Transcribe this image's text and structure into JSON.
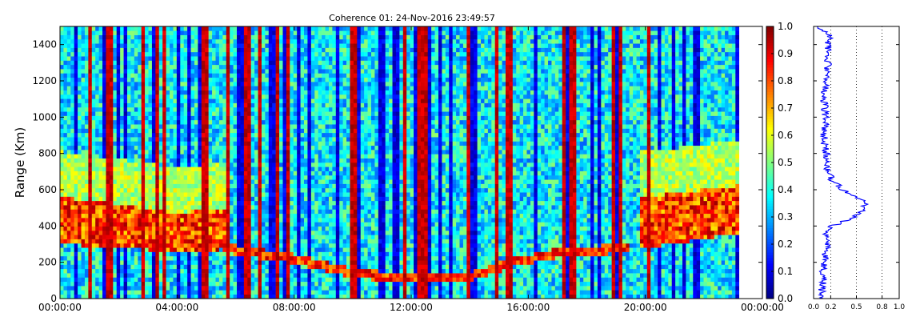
{
  "chart_data": [
    {
      "type": "heatmap",
      "title": "Coherence 01: 24-Nov-2016 23:49:57",
      "xlabel": "",
      "ylabel": "Range (Km)",
      "x_ticks": [
        "00:00:00",
        "04:00:00",
        "08:00:00",
        "12:00:00",
        "16:00:00",
        "20:00:00",
        "00:00:00"
      ],
      "x_range_hours": [
        0,
        24
      ],
      "y_ticks": [
        0,
        200,
        400,
        600,
        800,
        1000,
        1200,
        1400
      ],
      "ylim": [
        0,
        1500
      ],
      "colormap": "jet",
      "colorbar": {
        "range": [
          0.0,
          1.0
        ],
        "ticks": [
          "0.0",
          "0.1",
          "0.2",
          "0.3",
          "0.4",
          "0.5",
          "0.6",
          "0.7",
          "0.8",
          "0.9",
          "1.0"
        ]
      },
      "features": {
        "high_coherence_band": [
          {
            "hour": 0.0,
            "lower_km": 300,
            "upper_km": 560
          },
          {
            "hour": 2.0,
            "lower_km": 280,
            "upper_km": 520
          },
          {
            "hour": 4.0,
            "lower_km": 260,
            "upper_km": 470
          },
          {
            "hour": 5.5,
            "lower_km": 270,
            "upper_km": 500
          },
          {
            "hour": 20.0,
            "lower_km": 280,
            "upper_km": 560
          },
          {
            "hour": 22.0,
            "lower_km": 330,
            "upper_km": 600
          },
          {
            "hour": 24.0,
            "lower_km": 380,
            "upper_km": 640
          }
        ],
        "descending_trace": [
          {
            "hour": 5.5,
            "range_km": 280
          },
          {
            "hour": 8.0,
            "range_km": 220
          },
          {
            "hour": 10.0,
            "range_km": 140
          },
          {
            "hour": 12.0,
            "range_km": 110
          },
          {
            "hour": 14.0,
            "range_km": 120
          },
          {
            "hour": 15.5,
            "range_km": 200
          },
          {
            "hour": 17.0,
            "range_km": 250
          },
          {
            "hour": 19.5,
            "range_km": 280
          }
        ]
      },
      "grid": false,
      "legend": "none"
    },
    {
      "type": "line",
      "title": "",
      "xlabel": "",
      "ylabel": "",
      "x_ticks": [
        "0.0",
        "0.2",
        "0.5",
        "0.8",
        "1.0"
      ],
      "xlim": [
        0,
        1
      ],
      "ylim": [
        0,
        1500
      ],
      "grid": "vertical dotted at 0.2, 0.5, 0.8",
      "series": [
        {
          "color": "#0000ff",
          "points": [
            {
              "range_km": 1500,
              "value": 0.05
            },
            {
              "range_km": 1450,
              "value": 0.18
            },
            {
              "range_km": 1300,
              "value": 0.17
            },
            {
              "range_km": 1200,
              "value": 0.15
            },
            {
              "range_km": 1100,
              "value": 0.12
            },
            {
              "range_km": 1000,
              "value": 0.14
            },
            {
              "range_km": 900,
              "value": 0.12
            },
            {
              "range_km": 800,
              "value": 0.15
            },
            {
              "range_km": 700,
              "value": 0.17
            },
            {
              "range_km": 650,
              "value": 0.22
            },
            {
              "range_km": 600,
              "value": 0.35
            },
            {
              "range_km": 560,
              "value": 0.5
            },
            {
              "range_km": 530,
              "value": 0.6
            },
            {
              "range_km": 500,
              "value": 0.6
            },
            {
              "range_km": 470,
              "value": 0.55
            },
            {
              "range_km": 440,
              "value": 0.42
            },
            {
              "range_km": 400,
              "value": 0.22
            },
            {
              "range_km": 350,
              "value": 0.15
            },
            {
              "range_km": 300,
              "value": 0.16
            },
            {
              "range_km": 250,
              "value": 0.14
            },
            {
              "range_km": 200,
              "value": 0.13
            },
            {
              "range_km": 150,
              "value": 0.1
            },
            {
              "range_km": 100,
              "value": 0.12
            },
            {
              "range_km": 50,
              "value": 0.1
            },
            {
              "range_km": 0,
              "value": 0.1
            }
          ]
        }
      ]
    }
  ]
}
